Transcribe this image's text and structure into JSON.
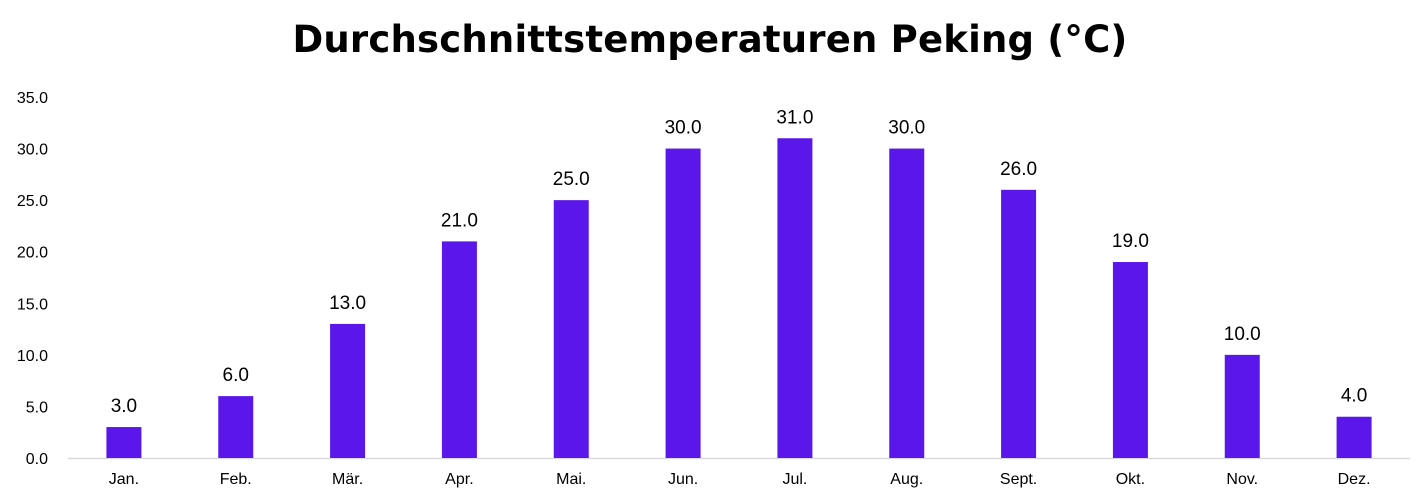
{
  "chart_data": {
    "type": "bar",
    "title": "Durchschnittstemperaturen Peking (°C)",
    "categories": [
      "Jan.",
      "Feb.",
      "Mär.",
      "Apr.",
      "Mai.",
      "Jun.",
      "Jul.",
      "Aug.",
      "Sept.",
      "Okt.",
      "Nov.",
      "Dez."
    ],
    "values": [
      3.0,
      6.0,
      13.0,
      21.0,
      25.0,
      30.0,
      31.0,
      30.0,
      26.0,
      19.0,
      10.0,
      4.0
    ],
    "value_labels": [
      "3.0",
      "6.0",
      "13.0",
      "21.0",
      "25.0",
      "30.0",
      "31.0",
      "30.0",
      "26.0",
      "19.0",
      "10.0",
      "4.0"
    ],
    "yticks": [
      0,
      5,
      10,
      15,
      20,
      25,
      30,
      35
    ],
    "ytick_labels": [
      "0.0",
      "5.0",
      "10.0",
      "15.0",
      "20.0",
      "25.0",
      "30.0",
      "35.0"
    ],
    "ylim": [
      0,
      35
    ],
    "xlabel": "",
    "ylabel": "",
    "grid": false,
    "legend": "none",
    "bar_color": "#5b16ea",
    "axis_color": "#d9d9d9"
  }
}
